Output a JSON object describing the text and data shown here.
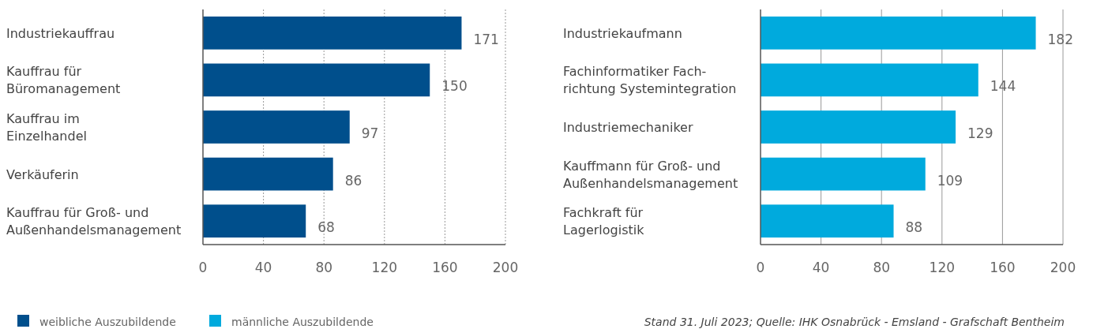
{
  "chart_data": [
    {
      "type": "bar",
      "orientation": "horizontal",
      "categories": [
        "Industriekauffrau",
        "Kauffrau für\nBüromanagement",
        "Kauffrau im\nEinzelhandel",
        "Verkäuferin",
        "Kauffrau für Groß- und\nAußenhandelsmanagement"
      ],
      "series": [
        {
          "name": "weibliche Auszubildende",
          "color": "#004f8c",
          "values": [
            171,
            150,
            97,
            86,
            68
          ]
        }
      ],
      "xlim": [
        0,
        200
      ],
      "xticks": [
        0,
        40,
        80,
        120,
        160,
        200
      ],
      "grid": "x",
      "data_labels": true,
      "legend": "bottom"
    },
    {
      "type": "bar",
      "orientation": "horizontal",
      "categories": [
        "Industriekaufmann",
        "Fachinformatiker Fach-\nrichtung Systemintegration",
        "Industriemechaniker",
        "Kauffmann für Groß- und\nAußenhandelsmanagement",
        "Fachkraft für\nLagerlogistik"
      ],
      "series": [
        {
          "name": "männliche Auszubildende",
          "color": "#00aadd",
          "values": [
            182,
            144,
            129,
            109,
            88
          ]
        }
      ],
      "xlim": [
        0,
        200
      ],
      "xticks": [
        0,
        40,
        80,
        120,
        160,
        200
      ],
      "grid": "x",
      "data_labels": true,
      "legend": "bottom",
      "annotations": [
        "Stand 31. Juli 2023; Quelle: IHK Osnabrück - Emsland - Grafschaft Bentheim"
      ]
    }
  ]
}
